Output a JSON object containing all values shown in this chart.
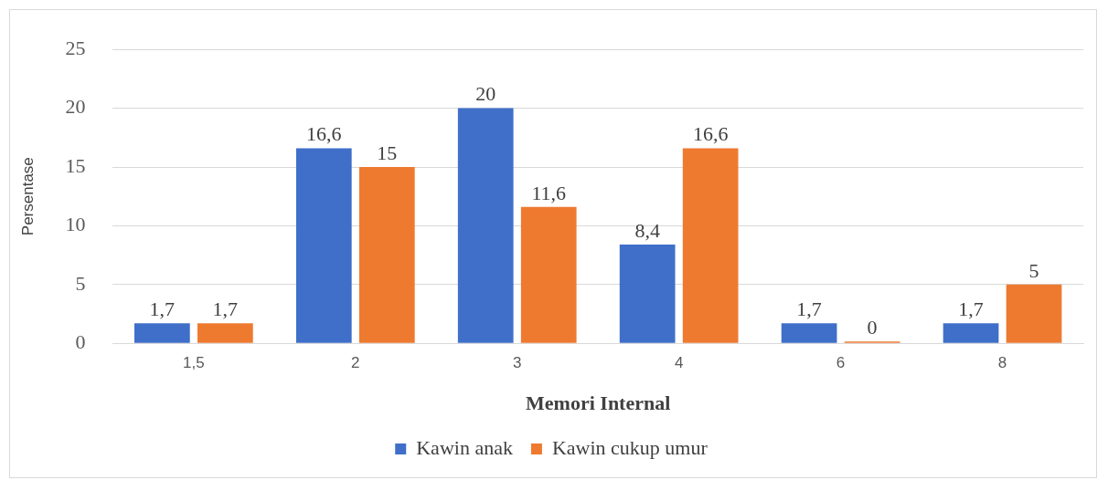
{
  "chart_data": {
    "type": "bar",
    "xlabel": "Memori Internal",
    "ylabel": "Persentase",
    "categories": [
      "1,5",
      "2",
      "3",
      "4",
      "6",
      "8"
    ],
    "series": [
      {
        "name": "Kawin anak",
        "color": "#3f6fc9",
        "values": [
          1.7,
          16.6,
          20,
          8.4,
          1.7,
          1.7
        ],
        "value_labels": [
          "1,7",
          "16,6",
          "20",
          "8,4",
          "1,7",
          "1,7"
        ]
      },
      {
        "name": "Kawin cukup umur",
        "color": "#ee7a30",
        "values": [
          1.7,
          15,
          11.6,
          16.6,
          0,
          5
        ],
        "value_labels": [
          "1,7",
          "15",
          "11,6",
          "16,6",
          "0",
          "5"
        ]
      }
    ],
    "ylim": [
      0,
      25
    ],
    "yticks": [
      0,
      5,
      10,
      15,
      20,
      25
    ],
    "grid": "y",
    "legend": "bottom"
  }
}
